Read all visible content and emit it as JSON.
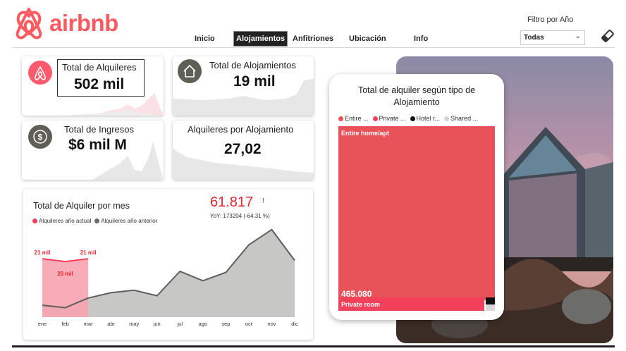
{
  "brand": {
    "name": "airbnb",
    "color": "#ff5a5f"
  },
  "nav": [
    "Inicio",
    "Alojamientos",
    "Anfitriones",
    "Ubicación",
    "Info"
  ],
  "nav_active": "Alojamientos",
  "filter": {
    "label": "Filtro por Año",
    "value": "Todas"
  },
  "kpis": {
    "alquileres": {
      "title": "Total de Alquileres",
      "value": "502 mil",
      "icon": "airbnb-icon"
    },
    "alojamientos": {
      "title": "Total de Alojamientos",
      "value": "19 mil",
      "icon": "home-icon"
    },
    "ingresos": {
      "title": "Total de Ingresos",
      "value": "$6 mil M",
      "icon": "dollar-icon"
    },
    "por_alojamiento": {
      "title": "Alquileres por Alojamiento",
      "value": "27,02"
    }
  },
  "monthly": {
    "title": "Total de Alquiler por mes",
    "kpi_value": "61.817",
    "kpi_mark": "!",
    "yoy": "YoY: 173204 (-64.31 %)",
    "legend": [
      "Alquileres año actual",
      "Alquileres año anterior"
    ],
    "point_labels": [
      "21 mil",
      "20 mil",
      "21 mil"
    ]
  },
  "treemap": {
    "title": "Total de alquiler según tipo de Alojamiento",
    "legend": [
      "Entire ...",
      "Private ...",
      "Hotel r...",
      "Shared ..."
    ],
    "main_label": "Entire home/apt",
    "main_value": "465.080",
    "second_label": "Private room"
  },
  "colors": {
    "accent": "#ff5a5f",
    "treemap_main": "#e8535a",
    "treemap_second": "#f2405a",
    "dark_icon": "#5f5f57",
    "area_prev": "#c7c7c5"
  },
  "chart_data": [
    {
      "type": "area",
      "title": "Total de Alquiler por mes",
      "categories": [
        "ene",
        "feb",
        "mar",
        "abr",
        "may",
        "jun",
        "jul",
        "ago",
        "sep",
        "oct",
        "nov",
        "dic"
      ],
      "series": [
        {
          "name": "Alquileres año actual",
          "values": [
            21,
            20,
            21,
            null,
            null,
            null,
            null,
            null,
            null,
            null,
            null,
            null
          ]
        },
        {
          "name": "Alquileres año anterior",
          "values": [
            4.3,
            3.4,
            6.9,
            8.8,
            9.7,
            7.7,
            16.5,
            13.1,
            16.1,
            26.0,
            31.5,
            20.4
          ]
        }
      ],
      "ylim": [
        0,
        36
      ],
      "grid": false,
      "legend": "top-left"
    },
    {
      "type": "treemap",
      "title": "Total de alquiler según tipo de Alojamiento",
      "categories": [
        "Entire home/apt",
        "Private room",
        "Hotel room",
        "Shared room"
      ],
      "values": [
        465080,
        32000,
        2500,
        700
      ]
    }
  ]
}
